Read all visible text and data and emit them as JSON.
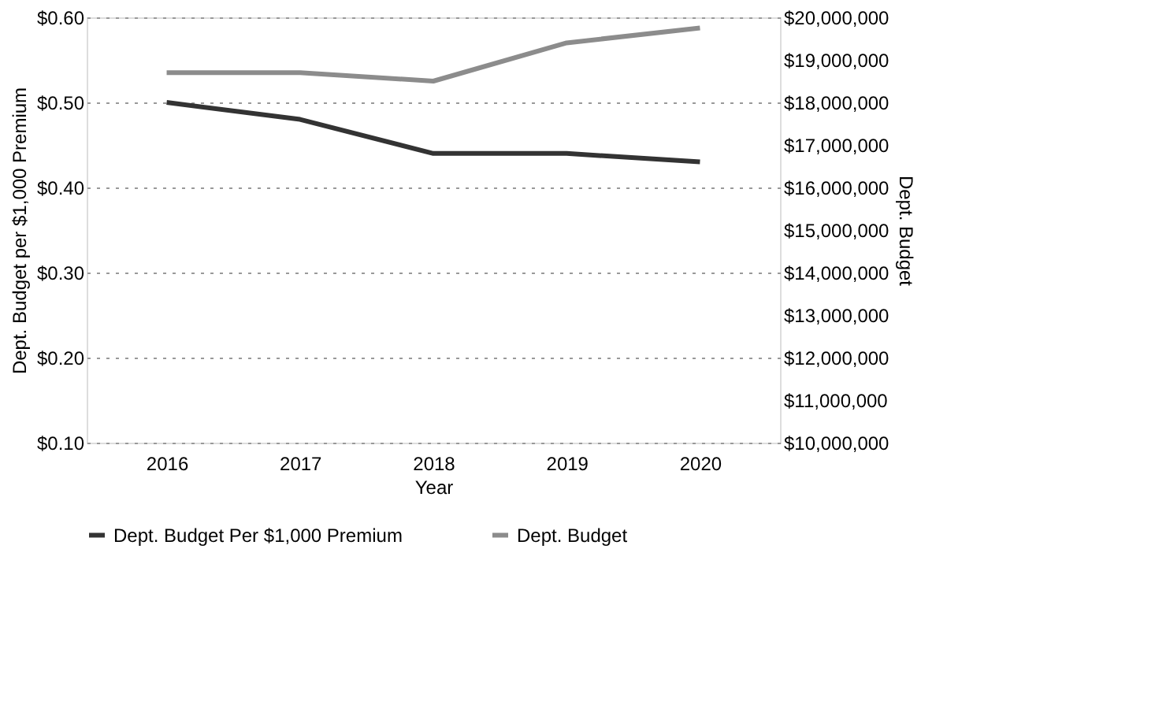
{
  "chart_data": {
    "type": "line",
    "xlabel": "Year",
    "ylabel": "Dept. Budget per $1,000 Premium",
    "y2label": "Dept. Budget",
    "categories": [
      "2016",
      "2017",
      "2018",
      "2019",
      "2020"
    ],
    "series": [
      {
        "name": "Dept. Budget Per $1,000 Premium",
        "color": "#333333",
        "values": [
          0.5,
          0.48,
          0.44,
          0.44,
          0.43
        ]
      },
      {
        "name": "Dept. Budget",
        "color": "#8c8c8c",
        "axis": "y2",
        "values": [
          18700000,
          18700000,
          18500000,
          19400000,
          19750000
        ]
      }
    ],
    "ylim": [
      0.1,
      0.6
    ],
    "yticks": [
      {
        "value": 0.1,
        "label": "$0.10"
      },
      {
        "value": 0.2,
        "label": "$0.20"
      },
      {
        "value": 0.3,
        "label": "$0.30"
      },
      {
        "value": 0.4,
        "label": "$0.40"
      },
      {
        "value": 0.5,
        "label": "$0.50"
      },
      {
        "value": 0.6,
        "label": "$0.60"
      }
    ],
    "y2lim": [
      10000000,
      20000000
    ],
    "y2ticks": [
      {
        "value": 10000000,
        "label": "$10,000,000"
      },
      {
        "value": 11000000,
        "label": "$11,000,000"
      },
      {
        "value": 12000000,
        "label": "$12,000,000"
      },
      {
        "value": 13000000,
        "label": "$13,000,000"
      },
      {
        "value": 14000000,
        "label": "$14,000,000"
      },
      {
        "value": 15000000,
        "label": "$15,000,000"
      },
      {
        "value": 16000000,
        "label": "$16,000,000"
      },
      {
        "value": 17000000,
        "label": "$17,000,000"
      },
      {
        "value": 18000000,
        "label": "$18,000,000"
      },
      {
        "value": 19000000,
        "label": "$19,000,000"
      },
      {
        "value": 20000000,
        "label": "$20,000,000"
      }
    ],
    "grid": "y",
    "legend": "bottom",
    "marker": "none",
    "line_style": "solid"
  }
}
